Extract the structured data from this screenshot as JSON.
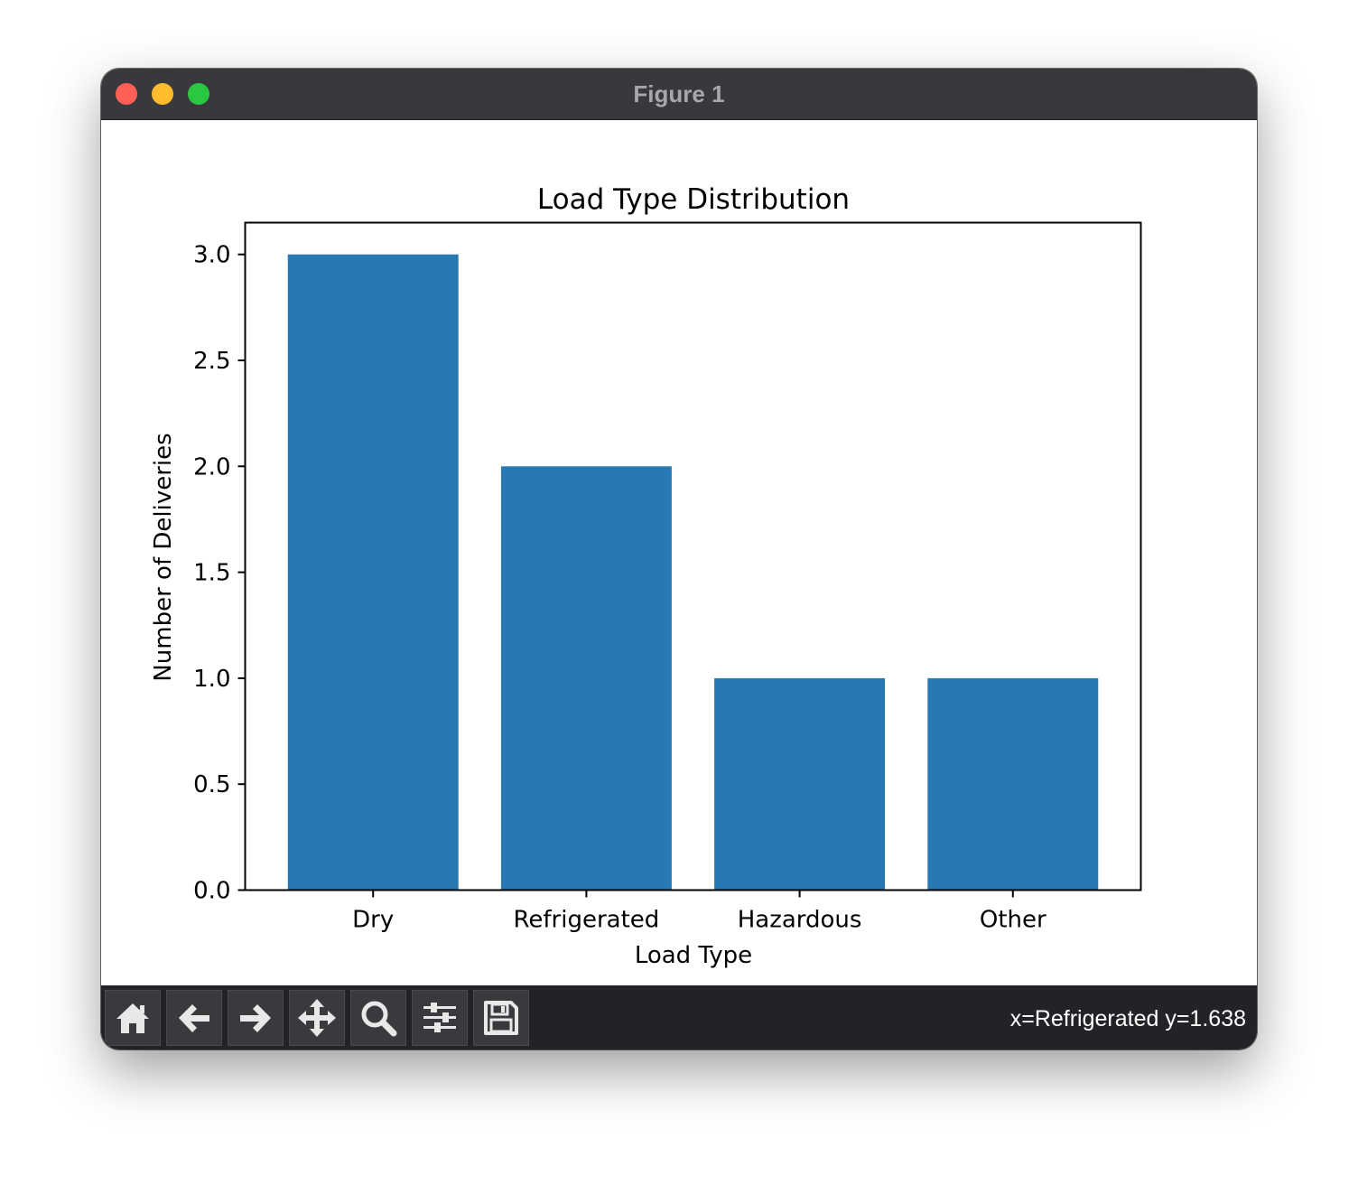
{
  "window": {
    "title": "Figure 1"
  },
  "colors": {
    "bar": "#2878b4",
    "titlebar": "#39383c",
    "toolbar": "#242227"
  },
  "toolbar": {
    "buttons": [
      {
        "name": "home-button",
        "icon": "home-icon"
      },
      {
        "name": "back-button",
        "icon": "arrow-left-icon"
      },
      {
        "name": "forward-button",
        "icon": "arrow-right-icon"
      },
      {
        "name": "pan-button",
        "icon": "move-icon"
      },
      {
        "name": "zoom-button",
        "icon": "magnifier-icon"
      },
      {
        "name": "configure-subplots-button",
        "icon": "sliders-icon"
      },
      {
        "name": "save-button",
        "icon": "floppy-disk-icon"
      }
    ],
    "status": "x=Refrigerated y=1.638"
  },
  "chart_data": {
    "type": "bar",
    "title": "Load Type Distribution",
    "xlabel": "Load Type",
    "ylabel": "Number of Deliveries",
    "categories": [
      "Dry",
      "Refrigerated",
      "Hazardous",
      "Other"
    ],
    "values": [
      3,
      2,
      1,
      1
    ],
    "ylim": [
      0,
      3.15
    ],
    "yticks": [
      "0.0",
      "0.5",
      "1.0",
      "1.5",
      "2.0",
      "2.5",
      "3.0"
    ],
    "grid": false,
    "legend": "none"
  }
}
